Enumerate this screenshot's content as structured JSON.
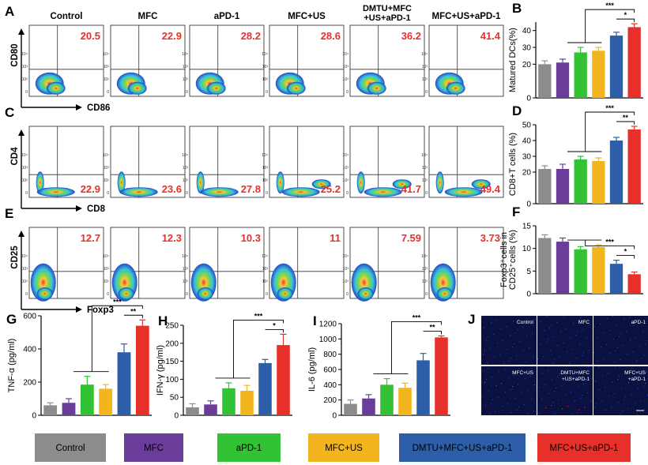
{
  "groups": [
    "Control",
    "MFC",
    "aPD-1",
    "MFC+US",
    "DMTU+MFC+US+aPD-1",
    "MFC+US+aPD-1"
  ],
  "flow_col_titles": [
    "Control",
    "MFC",
    "aPD-1",
    "MFC+US",
    "DMTU+MFC\n+US+aPD-1",
    "MFC+US+aPD-1"
  ],
  "colors": {
    "Control": "#8c8c8c",
    "MFC": "#6a3d9a",
    "aPD-1": "#33c233",
    "MFC+US": "#f2b51d",
    "DMTU+MFC+US+aPD-1": "#2c5fa8",
    "MFC+US+aPD-1": "#e8302a",
    "value_red": "#e8302a"
  },
  "panel_letters": [
    "A",
    "B",
    "C",
    "D",
    "E",
    "F",
    "G",
    "H",
    "I",
    "J"
  ],
  "rows": [
    {
      "letter": "A",
      "ylabel": "CD80",
      "xlabel": "CD86",
      "values": [
        "20.5",
        "22.9",
        "28.2",
        "28.6",
        "36.2",
        "41.4"
      ]
    },
    {
      "letter": "C",
      "ylabel": "CD4",
      "xlabel": "CD8",
      "values": [
        "22.9",
        "23.6",
        "27.8",
        "25.2",
        "41.7",
        "49.4"
      ]
    },
    {
      "letter": "E",
      "ylabel": "CD25",
      "xlabel": "Foxp3",
      "values": [
        "12.7",
        "12.3",
        "10.3",
        "11",
        "7.59",
        "3.73"
      ]
    }
  ],
  "chart_data": [
    {
      "panel": "B",
      "type": "bar",
      "categories": [
        "Control",
        "MFC",
        "aPD-1",
        "MFC+US",
        "DMTU+MFC+US+aPD-1",
        "MFC+US+aPD-1"
      ],
      "values": [
        20,
        21,
        27,
        28,
        37,
        42
      ],
      "errors": [
        2,
        2,
        3,
        2,
        2,
        2
      ],
      "ylabel": "Matured DCs(%)",
      "ylim": [
        0,
        45
      ],
      "yticks": [
        0,
        20,
        30,
        40
      ],
      "signif": [
        "***",
        "*"
      ]
    },
    {
      "panel": "D",
      "type": "bar",
      "categories": [
        "Control",
        "MFC",
        "aPD-1",
        "MFC+US",
        "DMTU+MFC+US+aPD-1",
        "MFC+US+aPD-1"
      ],
      "values": [
        22,
        22,
        28,
        27,
        40,
        47
      ],
      "errors": [
        2,
        3,
        2,
        2,
        2,
        2
      ],
      "ylabel": "CD8+T cells (%)",
      "ylim": [
        0,
        50
      ],
      "yticks": [
        0,
        20,
        30,
        40,
        50
      ],
      "signif": [
        "***",
        "**"
      ]
    },
    {
      "panel": "F",
      "type": "bar",
      "categories": [
        "Control",
        "MFC",
        "aPD-1",
        "MFC+US",
        "DMTU+MFC+US+aPD-1",
        "MFC+US+aPD-1"
      ],
      "values": [
        12.3,
        11.5,
        9.8,
        10.3,
        6.6,
        4.3
      ],
      "errors": [
        0.7,
        0.8,
        0.6,
        0.5,
        0.8,
        0.5
      ],
      "ylabel": "Foxp3+cells in CD25+cells (%)",
      "ylim": [
        0,
        15
      ],
      "yticks": [
        0,
        5,
        10,
        15
      ],
      "signif": [
        "***",
        "*"
      ]
    },
    {
      "panel": "G",
      "type": "bar",
      "categories": [
        "Control",
        "MFC",
        "aPD-1",
        "MFC+US",
        "DMTU+MFC+US+aPD-1",
        "MFC+US+aPD-1"
      ],
      "values": [
        60,
        75,
        185,
        160,
        380,
        540
      ],
      "errors": [
        15,
        25,
        50,
        25,
        50,
        35
      ],
      "ylabel": "TNF-α (pg/ml)",
      "ylim": [
        0,
        600
      ],
      "yticks": [
        0,
        200,
        400,
        600
      ],
      "signif": [
        "***",
        "**"
      ]
    },
    {
      "panel": "H",
      "type": "bar",
      "categories": [
        "Control",
        "MFC",
        "aPD-1",
        "MFC+US",
        "DMTU+MFC+US+aPD-1",
        "MFC+US+aPD-1"
      ],
      "values": [
        22,
        30,
        75,
        68,
        145,
        195
      ],
      "errors": [
        10,
        10,
        15,
        15,
        10,
        30
      ],
      "ylabel": "IFN-γ (pg/ml)",
      "ylim": [
        0,
        250
      ],
      "yticks": [
        0,
        50,
        100,
        150,
        200,
        250
      ],
      "signif": [
        "***",
        "*"
      ]
    },
    {
      "panel": "I",
      "type": "bar",
      "categories": [
        "Control",
        "MFC",
        "aPD-1",
        "MFC+US",
        "DMTU+MFC+US+aPD-1",
        "MFC+US+aPD-1"
      ],
      "values": [
        150,
        220,
        400,
        360,
        720,
        1020
      ],
      "errors": [
        50,
        50,
        80,
        60,
        90,
        20
      ],
      "ylabel": "IL-6 (pg/ml)",
      "ylim": [
        0,
        1200
      ],
      "yticks": [
        0,
        200,
        400,
        600,
        800,
        1000,
        1200
      ],
      "signif": [
        "***",
        "**"
      ]
    }
  ],
  "micrographs": [
    "Control",
    "MFC",
    "aPD-1",
    "MFC+US",
    "DMTU+MFC\n+US+aPD-1",
    "MFC+US\n+aPD-1"
  ],
  "legend": [
    "Control",
    "MFC",
    "aPD-1",
    "MFC+US",
    "DMTU+MFC+US+aPD-1",
    "MFC+US+aPD-1"
  ]
}
